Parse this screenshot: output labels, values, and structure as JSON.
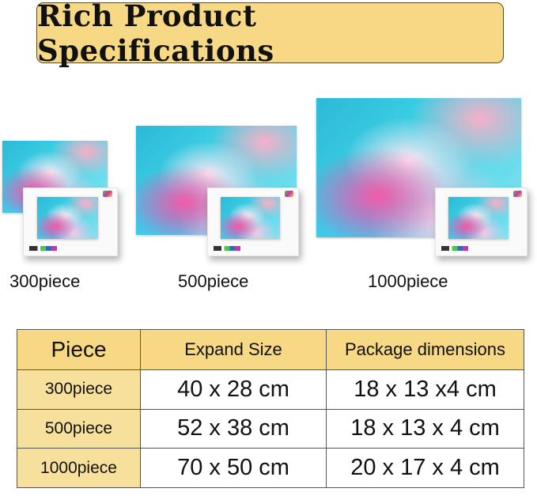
{
  "title": "Rich Product Specifications",
  "products": [
    {
      "label": "300piece"
    },
    {
      "label": "500piece"
    },
    {
      "label": "1000piece"
    }
  ],
  "table": {
    "headers": [
      "Piece",
      "Expand Size",
      "Package dimensions"
    ],
    "rows": [
      [
        "300piece",
        "40 x 28 cm",
        "18 x 13 x4 cm"
      ],
      [
        "500piece",
        "52 x 38 cm",
        "18 x 13 x 4 cm"
      ],
      [
        "1000piece",
        "70 x 50 cm",
        "20 x 17 x 4 cm"
      ]
    ]
  },
  "colors": {
    "accent": "#f7d985",
    "first_column": "#f7df9c"
  }
}
